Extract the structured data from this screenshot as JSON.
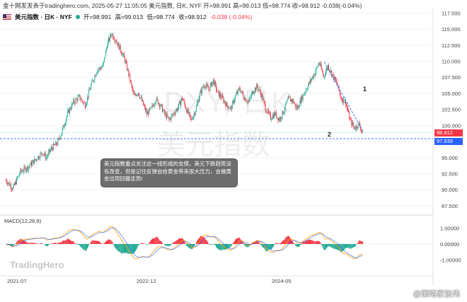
{
  "header": {
    "line": "金十网发发表于tradinghero.com, 2025-05-27 11:05:05 美元指数, 日K, NYF 开=98.991 高=99.013 低=98.774 收=98.912 -0.038(-0.04%)",
    "symbol": "美元指数 · 日K · NYF",
    "open": "开=98.991",
    "high": "高=99.013",
    "low": "低=98.774",
    "close": "收=98.912",
    "change": "-0.038 (-0.04%)"
  },
  "watermark": {
    "line1": "DXY, 日K",
    "line2": "美元指数"
  },
  "brand": "TradingHero",
  "annotation": "美元指数重点关注这一线形成的支撑。美元下跌趋势没有改变，但是记住反弹会给黄金带来很大压力，会做黄金出现回撤走势!",
  "labels": {
    "one": "1",
    "two": "2"
  },
  "price_tags": {
    "last": "98.912",
    "support": "97.939"
  },
  "macd_label": "MACD(12,26,9)",
  "credit": "@策略家张伟",
  "colors": {
    "up": "#22ab94",
    "down": "#f23645",
    "macd": "#2962ff",
    "signal": "#ff9800",
    "support": "#2962ff",
    "trend": "#2962ff"
  },
  "chart_data": {
    "type": "candlestick",
    "x_ticks": [
      "2021-07",
      "2022-12",
      "2024-05"
    ],
    "y_ticks": [
      "117.500",
      "115.000",
      "112.500",
      "110.000",
      "107.500",
      "105.000",
      "102.500",
      "100.000",
      "97.500",
      "95.000",
      "92.500",
      "90.000",
      "87.500"
    ],
    "ylim": [
      86.5,
      118.2
    ],
    "macd_ticks": [
      "1.00000",
      "0.00000",
      "-1.00000"
    ],
    "macd_ylim": [
      -1.5,
      1.6
    ],
    "support_level": 97.939,
    "last_price": 98.912,
    "close_path": [
      [
        0,
        91.5
      ],
      [
        10,
        90.2
      ],
      [
        20,
        92.8
      ],
      [
        30,
        93.5
      ],
      [
        40,
        94.6
      ],
      [
        50,
        95.8
      ],
      [
        55,
        95.0
      ],
      [
        62,
        96.4
      ],
      [
        70,
        97.2
      ],
      [
        76,
        98.9
      ],
      [
        84,
        101.8
      ],
      [
        92,
        103.6
      ],
      [
        100,
        104.4
      ],
      [
        108,
        103.2
      ],
      [
        116,
        106.2
      ],
      [
        124,
        108.6
      ],
      [
        132,
        109.2
      ],
      [
        138,
        112.6
      ],
      [
        144,
        114.3
      ],
      [
        150,
        113.2
      ],
      [
        156,
        111.8
      ],
      [
        162,
        110.2
      ],
      [
        168,
        107.6
      ],
      [
        174,
        104.6
      ],
      [
        180,
        105.2
      ],
      [
        186,
        103.5
      ],
      [
        192,
        101.8
      ],
      [
        198,
        102.6
      ],
      [
        204,
        104.1
      ],
      [
        210,
        103.2
      ],
      [
        216,
        101.8
      ],
      [
        222,
        100.9
      ],
      [
        228,
        101.8
      ],
      [
        234,
        102.8
      ],
      [
        240,
        104.3
      ],
      [
        246,
        102.4
      ],
      [
        252,
        100.8
      ],
      [
        258,
        102.4
      ],
      [
        264,
        104.9
      ],
      [
        270,
        106.4
      ],
      [
        276,
        105.6
      ],
      [
        282,
        107.0
      ],
      [
        288,
        105.1
      ],
      [
        294,
        104.3
      ],
      [
        300,
        103.2
      ],
      [
        306,
        102.6
      ],
      [
        312,
        104.5
      ],
      [
        318,
        105.7
      ],
      [
        324,
        104.4
      ],
      [
        330,
        103.6
      ],
      [
        336,
        105.3
      ],
      [
        342,
        106.1
      ],
      [
        348,
        104.6
      ],
      [
        354,
        102.4
      ],
      [
        360,
        101.2
      ],
      [
        366,
        101.8
      ],
      [
        372,
        100.9
      ],
      [
        378,
        102.3
      ],
      [
        384,
        104.1
      ],
      [
        390,
        103.9
      ],
      [
        396,
        102.6
      ],
      [
        402,
        104.2
      ],
      [
        408,
        105.6
      ],
      [
        414,
        106.9
      ],
      [
        420,
        108.1
      ],
      [
        426,
        109.8
      ],
      [
        432,
        107.6
      ],
      [
        438,
        109.3
      ],
      [
        444,
        107.9
      ],
      [
        450,
        106.5
      ],
      [
        456,
        104.2
      ],
      [
        462,
        103.6
      ],
      [
        468,
        100.8
      ],
      [
        474,
        99.6
      ],
      [
        480,
        100.2
      ],
      [
        485,
        98.9
      ]
    ],
    "trendline": [
      [
        433,
        109.9
      ],
      [
        485,
        99.2
      ]
    ]
  }
}
